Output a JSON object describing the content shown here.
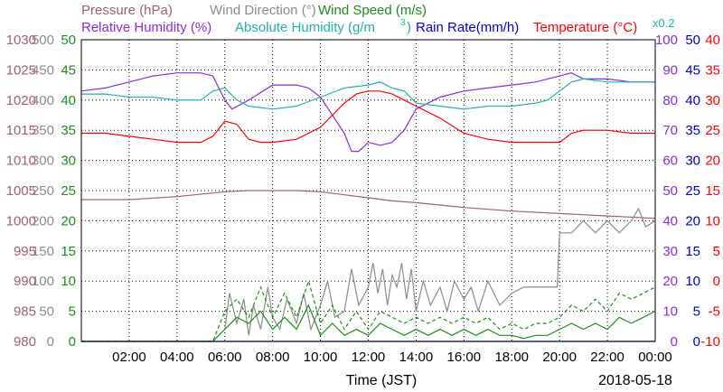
{
  "legend": {
    "row1": [
      {
        "text": "Pressure (hPa)",
        "color": "#a0606e"
      },
      {
        "text": "Wind Direction (°)",
        "color": "#8c8c8c"
      },
      {
        "text": "Wind Speed (m/s)",
        "color": "#1e8c1e"
      }
    ],
    "row2": [
      {
        "text": "Relative Humidity (%)",
        "color": "#8a2be2"
      },
      {
        "text": "Absolute Humidity (g/m",
        "color": "#20b2aa"
      },
      {
        "text": "Rain Rate(mm/h)",
        "color": "#0000cd"
      },
      {
        "text": "Temperature (°C)",
        "color": "#ff0000"
      }
    ],
    "ah_superscript": "3",
    "ah_close": ")",
    "x02": "x0.2"
  },
  "axes": {
    "pressure_ticks": [
      "980",
      "985",
      "990",
      "995",
      "1000",
      "1005",
      "1010",
      "1015",
      "1020",
      "1025",
      "1030"
    ],
    "wind_dir_ticks": [
      "0",
      "50",
      "100",
      "150",
      "200",
      "250",
      "300",
      "350",
      "400",
      "450",
      "500"
    ],
    "wind_speed_ticks": [
      "0",
      "5",
      "10",
      "15",
      "20",
      "25",
      "30",
      "35",
      "40",
      "45",
      "50"
    ],
    "rh_ticks": [
      "0",
      "10",
      "20",
      "30",
      "40",
      "50",
      "60",
      "70",
      "80",
      "90",
      "100"
    ],
    "rain_ticks": [
      "0",
      "5",
      "10",
      "15",
      "20",
      "25",
      "30",
      "35",
      "40",
      "45",
      "50"
    ],
    "temp_ticks": [
      "-10",
      "-5",
      "0",
      "5",
      "10",
      "15",
      "20",
      "25",
      "30",
      "35",
      "40"
    ],
    "x_ticks": [
      "02:00",
      "04:00",
      "06:00",
      "08:00",
      "10:00",
      "12:00",
      "14:00",
      "16:00",
      "18:00",
      "20:00",
      "22:00",
      "00:00"
    ],
    "xlabel": "Time (JST)",
    "date": "2018-05-18"
  },
  "chart_data": {
    "type": "line",
    "x_unit": "hour (JST)",
    "xlim": [
      0,
      24
    ],
    "series": [
      {
        "name": "Pressure (hPa)",
        "color": "#a0606e",
        "ylim": [
          980,
          1030
        ],
        "x": [
          0,
          2,
          4,
          6,
          7,
          8,
          9,
          10,
          11,
          12,
          13,
          14,
          15,
          16,
          18,
          20,
          22,
          24
        ],
        "y": [
          1003.5,
          1003.5,
          1004,
          1004.8,
          1005,
          1005,
          1005,
          1004.8,
          1004.3,
          1003.8,
          1003.3,
          1003,
          1002.6,
          1002.2,
          1001.6,
          1001.2,
          1000.8,
          1000.4
        ]
      },
      {
        "name": "Wind Direction (°)",
        "color": "#8c8c8c",
        "ylim": [
          0,
          500
        ],
        "x": [
          6,
          6.2,
          6.5,
          6.8,
          7,
          7.2,
          7.5,
          7.8,
          8,
          8.3,
          8.6,
          9,
          9.3,
          9.6,
          10,
          10.3,
          10.6,
          11,
          11.3,
          11.6,
          12,
          12.2,
          12.4,
          12.6,
          12.8,
          13,
          13.2,
          13.4,
          13.6,
          13.8,
          14,
          14.3,
          14.6,
          15,
          15.3,
          15.6,
          16,
          16.3,
          16.6,
          17,
          17.5,
          18,
          18.5,
          19,
          19.5,
          19.9,
          20,
          20.5,
          21,
          21.5,
          22,
          22.5,
          23,
          23.3,
          23.6,
          24
        ],
        "y": [
          20,
          80,
          30,
          70,
          10,
          60,
          20,
          90,
          40,
          20,
          70,
          30,
          80,
          20,
          60,
          100,
          40,
          50,
          120,
          60,
          90,
          130,
          80,
          120,
          60,
          110,
          90,
          130,
          70,
          120,
          50,
          100,
          60,
          90,
          50,
          100,
          70,
          90,
          50,
          100,
          60,
          80,
          90,
          90,
          90,
          90,
          180,
          180,
          200,
          180,
          200,
          180,
          200,
          220,
          190,
          200
        ]
      },
      {
        "name": "Wind Speed (m/s)",
        "color": "#1e8c1e",
        "ylim": [
          0,
          50
        ],
        "x": [
          0,
          2,
          4,
          5.5,
          6,
          6.5,
          7,
          7.5,
          8,
          8.5,
          9,
          9.5,
          10,
          10.5,
          11,
          11.5,
          12,
          12.5,
          13,
          13.5,
          14,
          14.5,
          15,
          15.5,
          16,
          16.5,
          17,
          17.5,
          18,
          18.5,
          19,
          19.5,
          20,
          20.5,
          21,
          21.5,
          22,
          22.5,
          23,
          23.5,
          24
        ],
        "y": [
          0,
          0,
          0,
          0,
          2,
          4,
          3,
          5,
          2,
          4,
          2,
          6,
          1,
          3,
          1,
          2,
          1,
          3,
          2,
          1,
          2,
          1,
          2,
          1,
          2,
          1,
          2,
          1,
          1,
          0.5,
          1,
          1,
          2,
          3,
          2,
          3,
          2,
          4,
          3,
          4,
          5
        ]
      },
      {
        "name": "Wind Gust (m/s)",
        "color": "#1e8c1e",
        "dashed": true,
        "ylim": [
          0,
          50
        ],
        "x": [
          0,
          2,
          4,
          5.5,
          6,
          6.5,
          7,
          7.5,
          8,
          8.5,
          9,
          9.5,
          10,
          10.5,
          11,
          11.5,
          12,
          12.5,
          13,
          13.5,
          14,
          14.5,
          15,
          15.5,
          16,
          16.5,
          17,
          17.5,
          18,
          18.5,
          19,
          19.5,
          20,
          20.5,
          21,
          21.5,
          22,
          22.5,
          23,
          23.5,
          24
        ],
        "y": [
          0,
          0,
          0,
          0,
          5,
          7,
          4,
          9,
          4,
          8,
          4,
          10,
          3,
          6,
          2,
          5,
          2,
          5,
          4,
          3,
          4,
          3,
          4,
          3,
          4,
          3,
          4,
          2,
          3,
          2,
          3,
          3,
          4,
          6,
          5,
          7,
          5,
          8,
          7,
          8,
          9
        ]
      },
      {
        "name": "Relative Humidity (%)",
        "color": "#8a2be2",
        "ylim": [
          0,
          100
        ],
        "x": [
          0,
          1,
          2,
          3,
          4,
          5,
          5.5,
          6,
          6.3,
          7,
          8,
          9,
          9.5,
          10,
          10.5,
          11,
          11.3,
          11.6,
          12,
          12.5,
          13,
          13.5,
          14,
          15,
          16,
          17,
          18,
          19,
          19.5,
          20,
          20.5,
          21,
          22,
          23,
          24
        ],
        "y": [
          83,
          84,
          86,
          88,
          89,
          89,
          88,
          80,
          77,
          80,
          85,
          85,
          84,
          81,
          75,
          69,
          63,
          63,
          66,
          65,
          66,
          70,
          77,
          81,
          83,
          84,
          85,
          86,
          87,
          88,
          89,
          87,
          87,
          86,
          86
        ]
      },
      {
        "name": "Absolute Humidity (g/m3) x0.2",
        "color": "#20b2aa",
        "ylim": [
          0,
          100
        ],
        "x": [
          0,
          1,
          2,
          3,
          4,
          5,
          5.5,
          6,
          6.5,
          7,
          8,
          9,
          10,
          11,
          12,
          12.5,
          13,
          13.5,
          14,
          15,
          16,
          17,
          18,
          19,
          19.5,
          20,
          20.5,
          21,
          22,
          23,
          24
        ],
        "y": [
          82,
          82,
          81,
          81,
          80,
          80,
          83,
          84,
          80,
          78,
          77,
          78,
          81,
          84,
          85,
          86,
          84,
          83,
          79,
          78,
          77,
          78,
          78,
          79,
          80,
          83,
          86,
          87,
          86,
          86,
          86
        ]
      },
      {
        "name": "Rain Rate(mm/h)",
        "color": "#0000cd",
        "ylim": [
          0,
          50
        ],
        "x": [
          0,
          24
        ],
        "y": [
          0,
          0
        ]
      },
      {
        "name": "Temperature (°C)",
        "color": "#ff0000",
        "ylim": [
          -10,
          40
        ],
        "x": [
          0,
          1,
          2,
          3,
          4,
          5,
          5.5,
          6,
          6.5,
          7,
          7.5,
          8,
          9,
          10,
          10.5,
          11,
          11.5,
          12,
          12.5,
          13,
          13.5,
          14,
          15,
          16,
          17,
          18,
          19,
          19.5,
          20,
          20.5,
          21,
          22,
          23,
          24
        ],
        "y": [
          24.5,
          24.5,
          24,
          23.5,
          23,
          23,
          24,
          26.5,
          26,
          23.5,
          23,
          23,
          23.5,
          25.5,
          27.5,
          29.5,
          31,
          31.5,
          31.5,
          31,
          30,
          29,
          27,
          24.5,
          23.5,
          23,
          23,
          23,
          23,
          24.5,
          25,
          25,
          24.5,
          24.5
        ]
      }
    ]
  }
}
